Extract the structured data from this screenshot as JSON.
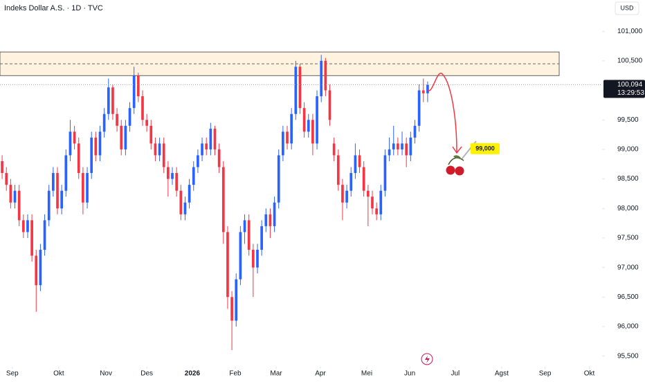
{
  "chart_data": {
    "type": "candlestick",
    "title": "Indeks Dollar A.S. · 1D · TVC",
    "currency": "USD",
    "up_color": "#2962ff",
    "down_color": "#f23645",
    "xlim": [
      -0.5,
      141
    ],
    "ylim": [
      95.32,
      101.53
    ],
    "yticks": [
      {
        "value": 95.5,
        "label": "95,500"
      },
      {
        "value": 96,
        "label": "96,000"
      },
      {
        "value": 96.5,
        "label": "96,500"
      },
      {
        "value": 97,
        "label": "97,000"
      },
      {
        "value": 97.5,
        "label": "97,500"
      },
      {
        "value": 98,
        "label": "98,000"
      },
      {
        "value": 98.5,
        "label": "98,500"
      },
      {
        "value": 99,
        "label": "99,000"
      },
      {
        "value": 99.5,
        "label": "99,500"
      },
      {
        "value": 100,
        "label": "100,000"
      },
      {
        "value": 100.5,
        "label": "100,500"
      },
      {
        "value": 101,
        "label": "101,000"
      }
    ],
    "xticks": [
      {
        "value": 2.4,
        "label": "Sep"
      },
      {
        "value": 13.3,
        "label": "Okt"
      },
      {
        "value": 24.4,
        "label": "Nov"
      },
      {
        "value": 34,
        "label": "Des"
      },
      {
        "value": 44.7,
        "label": "2026"
      },
      {
        "value": 54.8,
        "label": "Feb"
      },
      {
        "value": 64.4,
        "label": "Mar"
      },
      {
        "value": 74.8,
        "label": "Apr"
      },
      {
        "value": 85.7,
        "label": "Mei"
      },
      {
        "value": 95.8,
        "label": "Jun"
      },
      {
        "value": 106.5,
        "label": "Jul"
      },
      {
        "value": 117.4,
        "label": "Agst"
      },
      {
        "value": 127.6,
        "label": "Sep"
      },
      {
        "value": 138,
        "label": "Okt"
      }
    ],
    "ohlc": [
      [
        98.8,
        98.9,
        98.5,
        98.6
      ],
      [
        98.6,
        98.7,
        98.3,
        98.4
      ],
      [
        98.4,
        98.5,
        98.0,
        98.1
      ],
      [
        98.1,
        98.4,
        98.0,
        98.3
      ],
      [
        98.3,
        98.4,
        97.7,
        97.8
      ],
      [
        97.8,
        97.9,
        97.5,
        97.6
      ],
      [
        97.6,
        97.9,
        97.5,
        97.8
      ],
      [
        97.8,
        97.9,
        97.1,
        97.2
      ],
      [
        97.2,
        97.3,
        96.25,
        96.7
      ],
      [
        96.7,
        97.4,
        96.6,
        97.3
      ],
      [
        97.3,
        97.9,
        97.2,
        97.8
      ],
      [
        97.8,
        98.4,
        97.7,
        98.3
      ],
      [
        98.3,
        98.7,
        98.2,
        98.6
      ],
      [
        98.6,
        98.7,
        97.9,
        98.0
      ],
      [
        98.0,
        98.4,
        97.9,
        98.3
      ],
      [
        98.3,
        99.0,
        98.2,
        98.9
      ],
      [
        98.9,
        99.5,
        98.8,
        99.3
      ],
      [
        99.3,
        99.4,
        99.0,
        99.1
      ],
      [
        99.1,
        99.2,
        98.5,
        98.6
      ],
      [
        98.6,
        98.7,
        97.9,
        98.1
      ],
      [
        98.1,
        98.7,
        98.0,
        98.6
      ],
      [
        98.6,
        99.3,
        98.5,
        99.2
      ],
      [
        99.2,
        99.3,
        98.8,
        98.9
      ],
      [
        98.9,
        99.4,
        98.8,
        99.3
      ],
      [
        99.3,
        99.7,
        99.2,
        99.6
      ],
      [
        99.6,
        100.2,
        99.5,
        100.05
      ],
      [
        100.05,
        100.1,
        99.5,
        99.6
      ],
      [
        99.6,
        99.7,
        99.3,
        99.4
      ],
      [
        99.4,
        99.5,
        98.9,
        99.0
      ],
      [
        99.0,
        99.5,
        98.9,
        99.4
      ],
      [
        99.4,
        99.8,
        99.3,
        99.7
      ],
      [
        99.7,
        100.4,
        99.6,
        100.25
      ],
      [
        100.25,
        100.3,
        99.8,
        99.9
      ],
      [
        99.9,
        100.0,
        99.4,
        99.5
      ],
      [
        99.5,
        99.6,
        99.3,
        99.4
      ],
      [
        99.4,
        99.5,
        99.0,
        99.1
      ],
      [
        99.1,
        99.2,
        98.8,
        98.9
      ],
      [
        98.9,
        99.2,
        98.8,
        99.1
      ],
      [
        99.1,
        99.2,
        98.6,
        98.7
      ],
      [
        98.7,
        98.8,
        98.2,
        98.5
      ],
      [
        98.5,
        98.7,
        98.4,
        98.6
      ],
      [
        98.6,
        98.7,
        98.2,
        98.3
      ],
      [
        98.3,
        98.4,
        97.8,
        97.9
      ],
      [
        97.9,
        98.2,
        97.8,
        98.1
      ],
      [
        98.1,
        98.5,
        98.0,
        98.4
      ],
      [
        98.4,
        98.8,
        98.3,
        98.7
      ],
      [
        98.7,
        99.0,
        98.6,
        98.9
      ],
      [
        98.9,
        99.2,
        98.8,
        99.1
      ],
      [
        99.1,
        99.2,
        98.9,
        99.0
      ],
      [
        99.0,
        99.45,
        98.9,
        99.35
      ],
      [
        99.35,
        99.4,
        98.9,
        99.0
      ],
      [
        99.0,
        99.1,
        98.6,
        98.7
      ],
      [
        98.7,
        98.8,
        97.4,
        97.6
      ],
      [
        97.6,
        97.7,
        96.3,
        96.5
      ],
      [
        96.5,
        96.6,
        95.6,
        96.1
      ],
      [
        96.1,
        96.9,
        96.0,
        96.8
      ],
      [
        96.8,
        97.7,
        96.7,
        97.6
      ],
      [
        97.6,
        97.9,
        97.4,
        97.8
      ],
      [
        97.8,
        97.9,
        97.2,
        97.3
      ],
      [
        97.3,
        97.4,
        96.5,
        97.0
      ],
      [
        97.0,
        97.4,
        96.9,
        97.3
      ],
      [
        97.3,
        97.8,
        97.2,
        97.7
      ],
      [
        97.7,
        98.0,
        97.6,
        97.9
      ],
      [
        97.9,
        98.0,
        97.5,
        97.7
      ],
      [
        97.7,
        98.2,
        97.6,
        98.1
      ],
      [
        98.1,
        99.0,
        98.0,
        98.9
      ],
      [
        98.9,
        99.4,
        98.8,
        99.3
      ],
      [
        99.3,
        99.4,
        99.0,
        99.1
      ],
      [
        99.1,
        99.7,
        99.0,
        99.6
      ],
      [
        99.6,
        100.5,
        99.5,
        100.4
      ],
      [
        100.4,
        100.45,
        99.6,
        99.7
      ],
      [
        99.7,
        99.8,
        99.2,
        99.3
      ],
      [
        99.3,
        99.6,
        99.2,
        99.5
      ],
      [
        99.5,
        99.6,
        98.9,
        99.1
      ],
      [
        99.1,
        100.0,
        99.0,
        99.9
      ],
      [
        99.9,
        100.6,
        99.8,
        100.5
      ],
      [
        100.5,
        100.55,
        99.9,
        100.0
      ],
      [
        100.0,
        100.1,
        99.4,
        99.5
      ],
      [
        99.1,
        99.2,
        98.8,
        98.9
      ],
      [
        98.9,
        99.0,
        98.3,
        98.4
      ],
      [
        98.4,
        98.5,
        97.8,
        98.1
      ],
      [
        98.1,
        98.4,
        98.0,
        98.3
      ],
      [
        98.3,
        98.7,
        98.2,
        98.6
      ],
      [
        98.6,
        99.1,
        98.5,
        98.9
      ],
      [
        98.9,
        99.0,
        98.6,
        98.7
      ],
      [
        98.7,
        98.8,
        98.2,
        98.3
      ],
      [
        98.3,
        98.4,
        97.7,
        98.2
      ],
      [
        98.2,
        98.3,
        97.9,
        98.0
      ],
      [
        98.0,
        98.1,
        97.8,
        97.9
      ],
      [
        97.9,
        98.4,
        97.8,
        98.3
      ],
      [
        98.3,
        99.0,
        98.2,
        98.9
      ],
      [
        98.9,
        99.2,
        98.8,
        99.0
      ],
      [
        99.0,
        99.4,
        98.9,
        99.1
      ],
      [
        99.1,
        99.2,
        98.9,
        99.0
      ],
      [
        99.0,
        99.3,
        98.9,
        99.1
      ],
      [
        99.1,
        99.2,
        98.7,
        98.9
      ],
      [
        98.9,
        99.3,
        98.8,
        99.2
      ],
      [
        99.2,
        99.5,
        99.1,
        99.4
      ],
      [
        99.4,
        100.1,
        99.3,
        100.0
      ],
      [
        100.0,
        100.2,
        99.8,
        99.95
      ],
      [
        99.95,
        100.15,
        99.8,
        100.094
      ]
    ],
    "zone": {
      "from": 100.25,
      "to": 100.65,
      "mid": 100.45
    },
    "last_price": {
      "value": 100.094,
      "label": "100,094"
    },
    "countdown": "13:29:53",
    "target": {
      "value": 99,
      "label": "99,000"
    }
  }
}
